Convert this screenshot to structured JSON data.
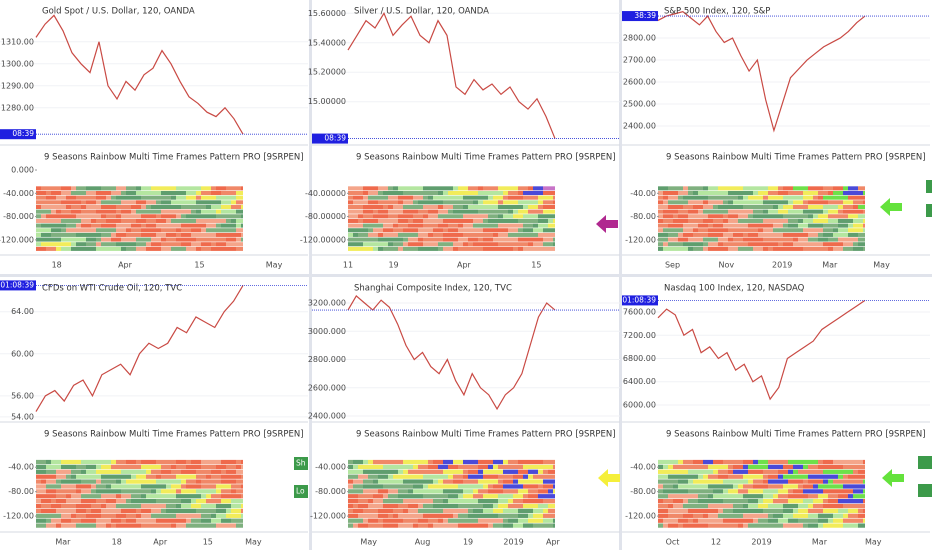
{
  "chart_data": [
    {
      "type": "line",
      "title": "Gold Spot / U.S. Dollar, 120, OANDA",
      "price_label": "08:39",
      "color": "#c94a44",
      "values": [
        1312,
        1318,
        1322,
        1315,
        1305,
        1300,
        1296,
        1310,
        1290,
        1284,
        1292,
        1288,
        1295,
        1298,
        1306,
        1300,
        1292,
        1285,
        1282,
        1278,
        1276,
        1280,
        1275,
        1268
      ],
      "ylim": [
        1264,
        1329
      ],
      "yticks": [
        {
          "value": 1310,
          "label": "1310.00"
        },
        {
          "value": 1300,
          "label": "1300.00"
        },
        {
          "value": 1290,
          "label": "1290.00"
        },
        {
          "value": 1280,
          "label": "1280.00"
        }
      ],
      "x_labels": [
        "18",
        "Apr",
        "15",
        "May"
      ],
      "indicator": {
        "title": "9 Seasons Rainbow Multi Time Frames Pattern PRO [9SRPEN]",
        "ylim": [
          -146,
          43
        ],
        "yticks": [
          {
            "value": 0,
            "label": "0.000"
          },
          {
            "value": -40,
            "label": "-40.000"
          },
          {
            "value": -80,
            "label": "-80.000"
          },
          {
            "value": -120,
            "label": "-120.000"
          }
        ]
      }
    },
    {
      "type": "line",
      "title": "Silver / U.S. Dollar, 120, OANDA",
      "price_label": "08:39",
      "color": "#c94a44",
      "values": [
        15.35,
        15.45,
        15.55,
        15.5,
        15.6,
        15.45,
        15.52,
        15.58,
        15.45,
        15.4,
        15.55,
        15.45,
        15.1,
        15.05,
        15.15,
        15.08,
        15.12,
        15.05,
        15.1,
        15.0,
        14.95,
        15.02,
        14.9,
        14.75
      ],
      "ylim": [
        14.72,
        15.69
      ],
      "yticks": [
        {
          "value": 15.6,
          "label": "15.60000"
        },
        {
          "value": 15.4,
          "label": "15.40000"
        },
        {
          "value": 15.2,
          "label": "15.20000"
        },
        {
          "value": 15.0,
          "label": "15.00000"
        }
      ],
      "x_labels": [
        "11",
        "19",
        "Apr",
        "15"
      ],
      "indicator": {
        "title": "9 Seasons Rainbow Multi Time Frames Pattern PRO [9SRPEN]",
        "ylim": [
          -146,
          43
        ],
        "yticks": [
          {
            "value": -40,
            "label": "-40.00000"
          },
          {
            "value": -80,
            "label": "-80.00000"
          },
          {
            "value": -120,
            "label": "-120.00000"
          }
        ]
      }
    },
    {
      "type": "line",
      "title": "S&P 500 Index, 120, S&P",
      "price_label": "38:39",
      "color": "#c94a44",
      "values": [
        2880,
        2900,
        2910,
        2920,
        2890,
        2860,
        2900,
        2830,
        2780,
        2800,
        2720,
        2650,
        2700,
        2520,
        2380,
        2500,
        2620,
        2660,
        2700,
        2730,
        2760,
        2780,
        2800,
        2830,
        2870,
        2900
      ],
      "ylim": [
        2323,
        2973
      ],
      "yticks": [
        {
          "value": 2800,
          "label": "2800.00"
        },
        {
          "value": 2700,
          "label": "2700.00"
        },
        {
          "value": 2600,
          "label": "2600.00"
        },
        {
          "value": 2500,
          "label": "2500.00"
        },
        {
          "value": 2400,
          "label": "2400.00"
        }
      ],
      "x_labels": [
        "Sep",
        "Nov",
        "2019",
        "Mar",
        "May"
      ],
      "indicator": {
        "title": "9 Seasons Rainbow Multi Time Frames Pattern PRO [9SRPEN]",
        "ylim": [
          -146,
          43
        ],
        "yticks": [
          {
            "value": -40,
            "label": "-40.00"
          },
          {
            "value": -80,
            "label": "-80.00"
          },
          {
            "value": -120,
            "label": "-120.00"
          }
        ]
      }
    },
    {
      "type": "line",
      "title": "CFDs on WTI Crude Oil, 120, TVC",
      "price_label": "01:08:39",
      "color": "#c94a44",
      "values": [
        54.5,
        56,
        56.5,
        55.5,
        57,
        57.5,
        56,
        58,
        58.5,
        59,
        58,
        60,
        61,
        60.5,
        61,
        62.5,
        62,
        63.5,
        63,
        62.5,
        64,
        65,
        66.5
      ],
      "ylim": [
        53.7,
        67.3
      ],
      "yticks": [
        {
          "value": 64,
          "label": "64.00"
        },
        {
          "value": 60,
          "label": "60.00"
        },
        {
          "value": 56,
          "label": "56.00"
        },
        {
          "value": 54,
          "label": "54.00"
        }
      ],
      "x_labels": [
        "Mar",
        "18",
        "Apr",
        "15",
        "May"
      ],
      "buttons": [
        "Sh",
        "Lo"
      ],
      "indicator": {
        "title": "9 Seasons Rainbow Multi Time Frames Pattern PRO [9SRPEN]",
        "ylim": [
          -146,
          34
        ],
        "yticks": [
          {
            "value": -40,
            "label": "-40.00"
          },
          {
            "value": -80,
            "label": "-80.00"
          },
          {
            "value": -120,
            "label": "-120.00"
          }
        ]
      }
    },
    {
      "type": "line",
      "title": "Shanghai Composite Index, 120, TVC",
      "price_label": "",
      "color": "#c94a44",
      "values": [
        3150,
        3250,
        3200,
        3150,
        3220,
        3170,
        3050,
        2900,
        2800,
        2850,
        2750,
        2700,
        2800,
        2650,
        2550,
        2700,
        2600,
        2550,
        2450,
        2550,
        2600,
        2700,
        2900,
        3100,
        3200,
        3150
      ],
      "ylim": [
        2372,
        3384
      ],
      "yticks": [
        {
          "value": 3200,
          "label": "3200.000"
        },
        {
          "value": 3000,
          "label": "3000.000"
        },
        {
          "value": 2800,
          "label": "2800.000"
        },
        {
          "value": 2600,
          "label": "2600.000"
        },
        {
          "value": 2400,
          "label": "2400.000"
        }
      ],
      "x_labels": [
        "May",
        "Aug",
        "19",
        "2019",
        "Apr"
      ],
      "indicator": {
        "title": "9 Seasons Rainbow Multi Time Frames Pattern PRO [9SRPEN]",
        "ylim": [
          -146,
          34
        ],
        "yticks": [
          {
            "value": -40,
            "label": "-40.000"
          },
          {
            "value": -80,
            "label": "-80.000"
          },
          {
            "value": -120,
            "label": "-120.000"
          }
        ]
      }
    },
    {
      "type": "line",
      "title": "Nasdaq 100 Index, 120, NASDAQ",
      "price_label": "01:08:39",
      "color": "#c94a44",
      "values": [
        7500,
        7650,
        7550,
        7200,
        7300,
        6900,
        7000,
        6800,
        6900,
        6600,
        6700,
        6400,
        6500,
        6100,
        6300,
        6800,
        6900,
        7000,
        7100,
        7300,
        7400,
        7500,
        7600,
        7700,
        7800
      ],
      "ylim": [
        5741,
        8203
      ],
      "yticks": [
        {
          "value": 7600,
          "label": "7600.00"
        },
        {
          "value": 7200,
          "label": "7200.00"
        },
        {
          "value": 6800,
          "label": "6800.00"
        },
        {
          "value": 6400,
          "label": "6400.00"
        },
        {
          "value": 6000,
          "label": "6000.00"
        }
      ],
      "x_labels": [
        "Oct",
        "12",
        "2019",
        "Mar",
        "May"
      ],
      "indicator": {
        "title": "9 Seasons Rainbow Multi Time Frames Pattern PRO [9SRPEN]",
        "ylim": [
          -146,
          34
        ],
        "yticks": [
          {
            "value": -40,
            "label": "-40.00"
          },
          {
            "value": -80,
            "label": "-80.00"
          },
          {
            "value": -120,
            "label": "-120.00"
          }
        ]
      }
    }
  ]
}
